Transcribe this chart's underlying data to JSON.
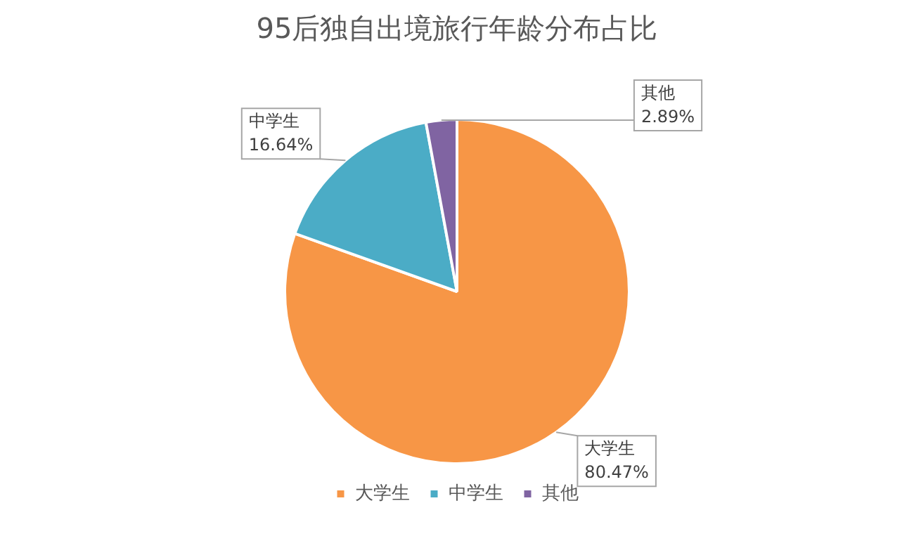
{
  "chart_data": {
    "type": "pie",
    "title": "95后独自出境旅行年龄分布占比",
    "categories": [
      "大学生",
      "中学生",
      "其他"
    ],
    "values": [
      80.47,
      16.64,
      2.89
    ],
    "colors": [
      "#f79646",
      "#4bacc6",
      "#8064a2"
    ],
    "value_labels": [
      "80.47%",
      "16.64%",
      "2.89%"
    ],
    "legend": "bottom"
  }
}
